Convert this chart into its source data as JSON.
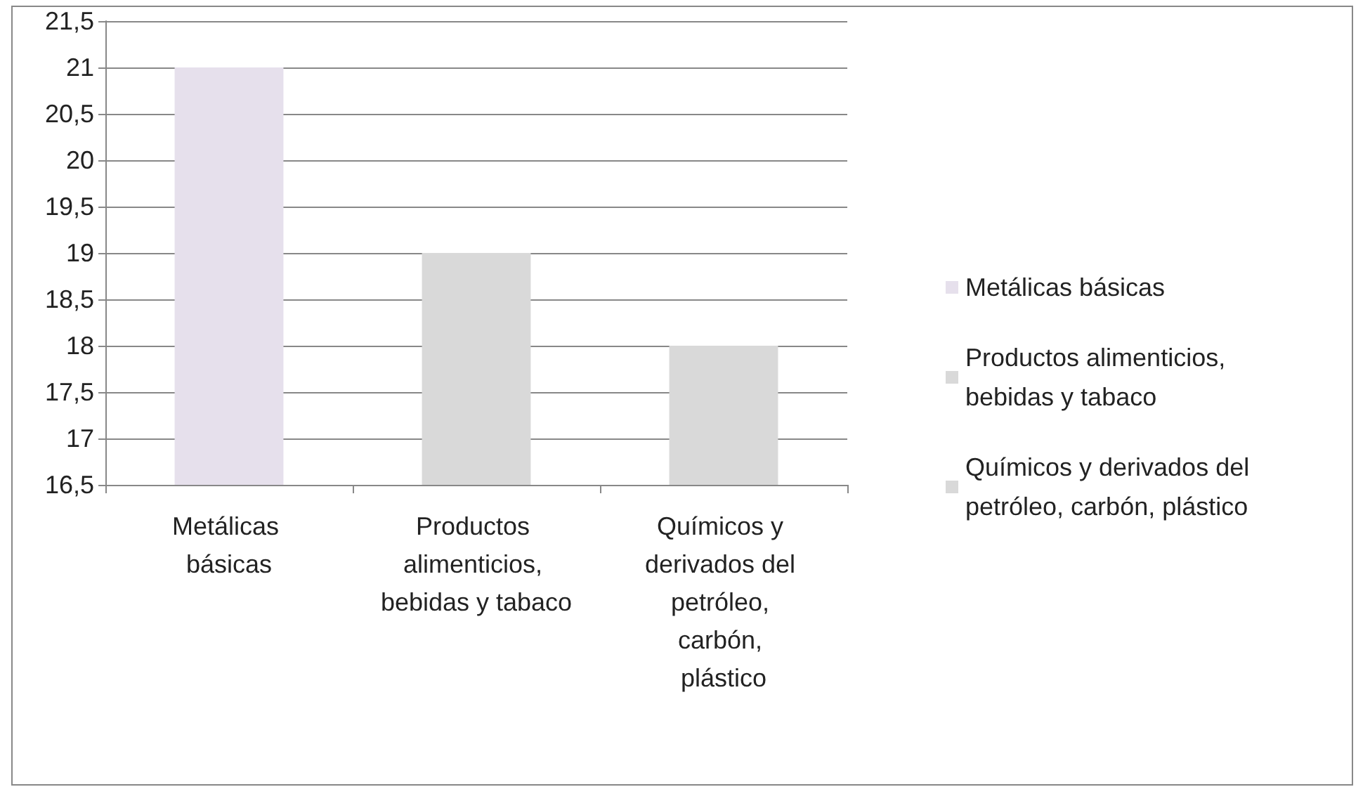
{
  "chart_data": {
    "type": "bar",
    "categories": [
      "Metálicas básicas",
      "Productos alimenticios, bebidas y tabaco",
      "Químicos y derivados del petróleo, carbón, plástico"
    ],
    "series": [
      {
        "name": "Metálicas básicas",
        "color": "#e6e0ec",
        "values": [
          21,
          null,
          null
        ]
      },
      {
        "name": "Productos alimenticios, bebidas y tabaco",
        "color": "#d9d9d9",
        "values": [
          null,
          19,
          null
        ]
      },
      {
        "name": "Químicos y derivados del petróleo, carbón, plástico",
        "color": "#d9d9d9",
        "values": [
          null,
          null,
          18
        ]
      }
    ],
    "ylim": [
      16.5,
      21.5
    ],
    "yticks": [
      {
        "value": 16.5,
        "label": "16,5"
      },
      17,
      {
        "value": 17.5,
        "label": "17,5"
      },
      18,
      {
        "value": 18.5,
        "label": "18,5"
      },
      19,
      {
        "value": 19.5,
        "label": "19,5"
      },
      20,
      {
        "value": 20.5,
        "label": "20,5"
      },
      21,
      {
        "value": 21.5,
        "label": "21,5"
      }
    ],
    "grid": "y",
    "legend": "right"
  }
}
